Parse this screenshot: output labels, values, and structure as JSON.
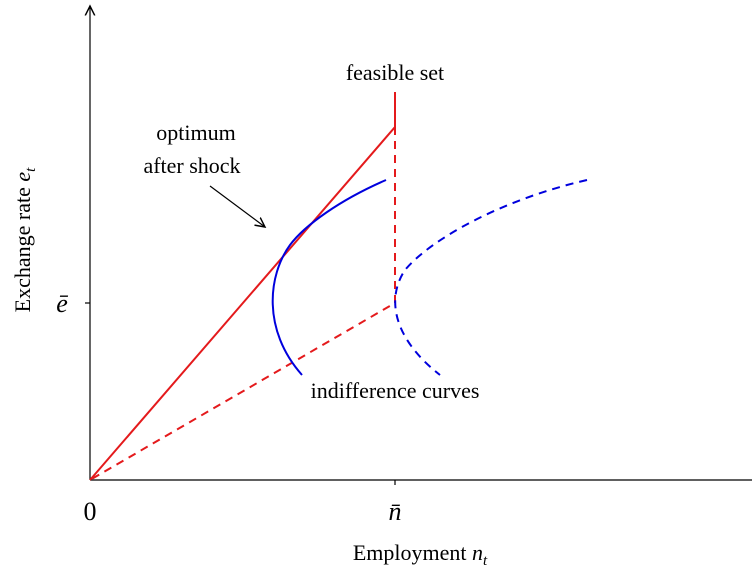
{
  "axes": {
    "x_label": {
      "text": "Employment",
      "variable": "n",
      "subscript": "t"
    },
    "y_label": {
      "text": "Exchange rate",
      "variable": "e",
      "subscript": "t"
    },
    "origin_label": "0",
    "x_tick_label": "n̄",
    "y_tick_label": "ē"
  },
  "annotations": {
    "feasible_set": "feasible set",
    "optimum": [
      "optimum",
      "after shock"
    ],
    "indifference_curves": "indifference curves"
  }
}
